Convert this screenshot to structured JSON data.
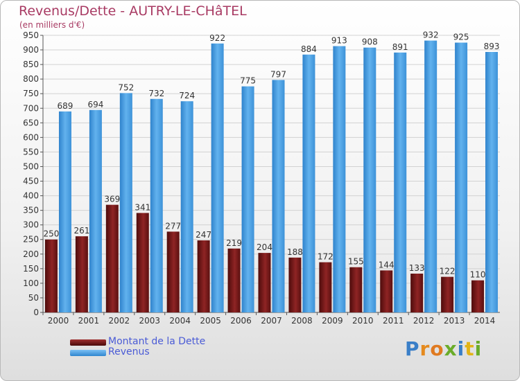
{
  "chart_data": {
    "type": "bar",
    "title": "Revenus/Dette - AUTRY-LE-CHâTEL",
    "subtitle": "(en milliers d'€)",
    "categories": [
      "2000",
      "2001",
      "2002",
      "2003",
      "2004",
      "2005",
      "2006",
      "2007",
      "2008",
      "2009",
      "2010",
      "2011",
      "2012",
      "2013",
      "2014"
    ],
    "series": [
      {
        "name": "Montant de la Dette",
        "color": "#7a1a1a",
        "values": [
          250,
          261,
          369,
          341,
          277,
          247,
          219,
          204,
          188,
          172,
          155,
          144,
          133,
          122,
          110
        ]
      },
      {
        "name": "Revenus",
        "color": "#4a9fe0",
        "values": [
          689,
          694,
          752,
          732,
          724,
          922,
          775,
          797,
          884,
          913,
          908,
          891,
          932,
          925,
          893
        ]
      }
    ],
    "ylim": [
      0,
      950
    ],
    "yticks": [
      0,
      50,
      100,
      150,
      200,
      250,
      300,
      350,
      400,
      450,
      500,
      550,
      600,
      650,
      700,
      750,
      800,
      850,
      900,
      950
    ],
    "grid": true,
    "legend": "bottom-left"
  },
  "logo": {
    "letters": [
      "P",
      "r",
      "o",
      "x",
      "i",
      "t",
      "i"
    ],
    "colors": [
      "#3a7fc8",
      "#e58a1e",
      "#e07a20",
      "#6aac2a",
      "#3a7fc8",
      "#e2b418",
      "#6aac2a"
    ]
  }
}
